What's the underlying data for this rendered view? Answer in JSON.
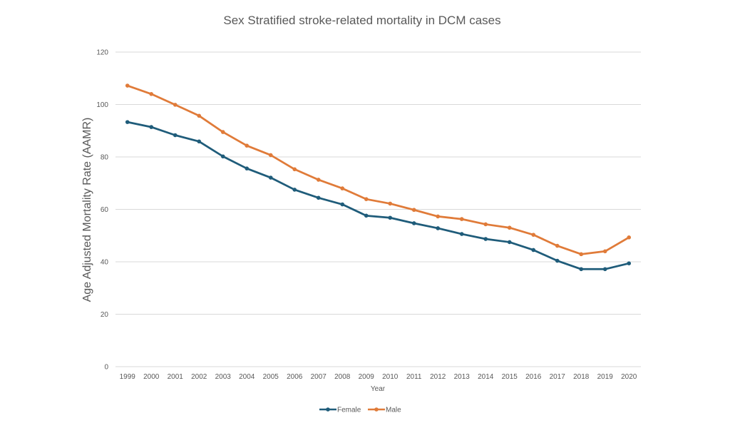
{
  "chart_data": {
    "type": "line",
    "title": "Sex Stratified stroke-related mortality in DCM cases",
    "xlabel": "Year",
    "ylabel": "Age Adjusted Mortality Rate (AAMR)",
    "ylim": [
      0,
      120
    ],
    "yticks": [
      0,
      20,
      40,
      60,
      80,
      100,
      120
    ],
    "grid": true,
    "legend_position": "bottom",
    "categories": [
      "1999",
      "2000",
      "2001",
      "2002",
      "2003",
      "2004",
      "2005",
      "2006",
      "2007",
      "2008",
      "2009",
      "2010",
      "2011",
      "2012",
      "2013",
      "2014",
      "2015",
      "2016",
      "2017",
      "2018",
      "2019",
      "2020"
    ],
    "series": [
      {
        "name": "Female",
        "color": "#1f5c7a",
        "values": [
          93.3,
          91.4,
          88.3,
          85.9,
          80.2,
          75.6,
          72.1,
          67.5,
          64.4,
          61.9,
          57.6,
          56.8,
          54.7,
          52.8,
          50.6,
          48.7,
          47.5,
          44.5,
          40.4,
          37.2,
          37.2,
          39.4
        ]
      },
      {
        "name": "Male",
        "color": "#e07b39",
        "values": [
          107.2,
          104.0,
          99.9,
          95.7,
          89.5,
          84.3,
          80.7,
          75.3,
          71.3,
          68.0,
          63.9,
          62.2,
          59.8,
          57.3,
          56.3,
          54.3,
          53.0,
          50.3,
          46.1,
          42.9,
          44.0,
          49.3
        ]
      }
    ]
  }
}
